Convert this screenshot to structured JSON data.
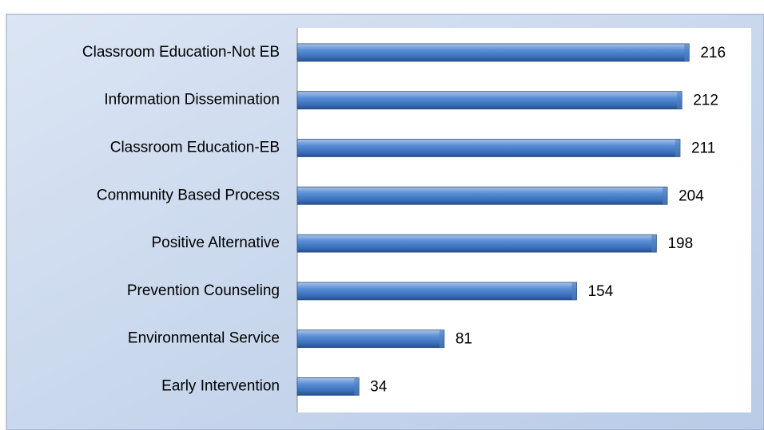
{
  "chart_data": {
    "type": "bar",
    "orientation": "horizontal",
    "categories": [
      "Classroom Education-Not EB",
      "Information Dissemination",
      "Classroom Education-EB",
      "Community Based Process",
      "Positive Alternative",
      "Prevention Counseling",
      "Environmental Service",
      "Early Intervention"
    ],
    "values": [
      216,
      212,
      211,
      204,
      198,
      154,
      81,
      34
    ],
    "color": "#4f81bd"
  }
}
